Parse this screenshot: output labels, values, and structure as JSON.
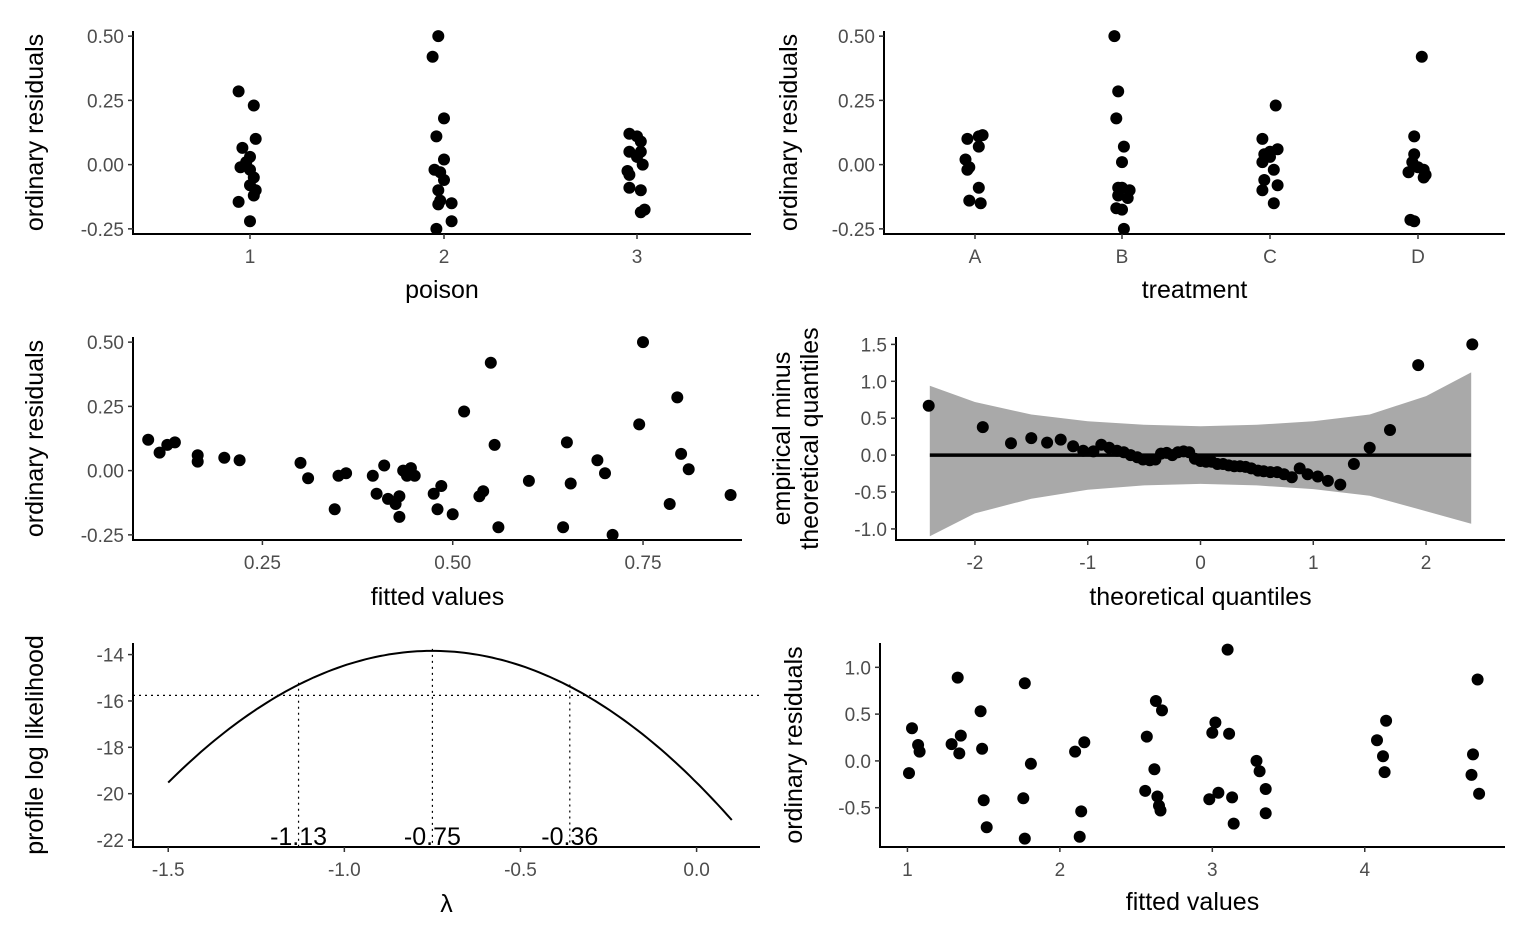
{
  "chart_data": [
    {
      "id": "p1",
      "type": "scatter",
      "xlabel": "poison",
      "ylabel": "ordinary residuals",
      "x_type": "category",
      "categories": [
        "1",
        "2",
        "3"
      ],
      "ylim": [
        -0.27,
        0.52
      ],
      "yticks": [
        -0.25,
        0,
        0.25,
        0.5
      ],
      "ytick_labels": [
        "-0.25",
        "0.00",
        "0.25",
        "0.50"
      ],
      "points": [
        [
          "1",
          -0.06,
          0.285
        ],
        [
          "1",
          0.02,
          0.23
        ],
        [
          "1",
          0.03,
          0.1
        ],
        [
          "1",
          -0.04,
          0.065
        ],
        [
          "1",
          0.0,
          0.03
        ],
        [
          "1",
          -0.02,
          0.01
        ],
        [
          "1",
          -0.05,
          -0.01
        ],
        [
          "1",
          0.0,
          -0.02
        ],
        [
          "1",
          0.02,
          -0.05
        ],
        [
          "1",
          0.0,
          -0.08
        ],
        [
          "1",
          0.03,
          -0.1
        ],
        [
          "1",
          0.02,
          -0.12
        ],
        [
          "1",
          -0.06,
          -0.145
        ],
        [
          "1",
          0.0,
          -0.22
        ],
        [
          "2",
          -0.06,
          0.42
        ],
        [
          "2",
          -0.03,
          0.5
        ],
        [
          "2",
          0.0,
          0.18
        ],
        [
          "2",
          -0.04,
          0.11
        ],
        [
          "2",
          0.0,
          0.02
        ],
        [
          "2",
          -0.05,
          -0.02
        ],
        [
          "2",
          -0.02,
          -0.03
        ],
        [
          "2",
          0.0,
          -0.06
        ],
        [
          "2",
          -0.03,
          -0.1
        ],
        [
          "2",
          -0.02,
          -0.14
        ],
        [
          "2",
          -0.03,
          -0.155
        ],
        [
          "2",
          0.04,
          -0.15
        ],
        [
          "2",
          0.04,
          -0.22
        ],
        [
          "2",
          -0.04,
          -0.25
        ],
        [
          "3",
          -0.04,
          0.12
        ],
        [
          "3",
          0.0,
          0.11
        ],
        [
          "3",
          0.02,
          0.09
        ],
        [
          "3",
          -0.04,
          0.05
        ],
        [
          "3",
          0.02,
          0.05
        ],
        [
          "3",
          0.0,
          0.03
        ],
        [
          "3",
          0.03,
          0.0
        ],
        [
          "3",
          -0.05,
          -0.025
        ],
        [
          "3",
          -0.04,
          -0.04
        ],
        [
          "3",
          -0.04,
          -0.09
        ],
        [
          "3",
          0.02,
          -0.1
        ],
        [
          "3",
          0.04,
          -0.175
        ],
        [
          "3",
          0.02,
          -0.185
        ]
      ]
    },
    {
      "id": "p2",
      "type": "scatter",
      "xlabel": "treatment",
      "ylabel": "ordinary residuals",
      "x_type": "category",
      "categories": [
        "A",
        "B",
        "C",
        "D"
      ],
      "ylim": [
        -0.27,
        0.52
      ],
      "yticks": [
        -0.25,
        0,
        0.25,
        0.5
      ],
      "ytick_labels": [
        "-0.25",
        "0.00",
        "0.25",
        "0.50"
      ],
      "points": [
        [
          "A",
          -0.04,
          0.1
        ],
        [
          "A",
          0.02,
          0.11
        ],
        [
          "A",
          0.04,
          0.115
        ],
        [
          "A",
          0.02,
          0.07
        ],
        [
          "A",
          -0.05,
          0.02
        ],
        [
          "A",
          -0.03,
          -0.01
        ],
        [
          "A",
          -0.04,
          -0.02
        ],
        [
          "A",
          0.02,
          -0.09
        ],
        [
          "A",
          -0.03,
          -0.14
        ],
        [
          "A",
          0.03,
          -0.15
        ],
        [
          "B",
          -0.04,
          0.5
        ],
        [
          "B",
          -0.02,
          0.285
        ],
        [
          "B",
          -0.03,
          0.18
        ],
        [
          "B",
          0.01,
          0.07
        ],
        [
          "B",
          0.0,
          0.01
        ],
        [
          "B",
          -0.02,
          -0.09
        ],
        [
          "B",
          0.0,
          -0.09
        ],
        [
          "B",
          0.04,
          -0.1
        ],
        [
          "B",
          -0.02,
          -0.12
        ],
        [
          "B",
          0.03,
          -0.13
        ],
        [
          "B",
          -0.03,
          -0.17
        ],
        [
          "B",
          0.0,
          -0.175
        ],
        [
          "B",
          0.01,
          -0.25
        ],
        [
          "C",
          -0.04,
          0.1
        ],
        [
          "C",
          0.03,
          0.23
        ],
        [
          "C",
          0.0,
          0.05
        ],
        [
          "C",
          -0.03,
          0.04
        ],
        [
          "C",
          0.04,
          0.06
        ],
        [
          "C",
          0.0,
          0.03
        ],
        [
          "C",
          -0.04,
          0.01
        ],
        [
          "C",
          0.02,
          -0.02
        ],
        [
          "C",
          -0.03,
          -0.06
        ],
        [
          "C",
          0.04,
          -0.08
        ],
        [
          "C",
          -0.04,
          -0.1
        ],
        [
          "C",
          0.02,
          -0.15
        ],
        [
          "D",
          -0.02,
          0.11
        ],
        [
          "D",
          0.02,
          0.42
        ],
        [
          "D",
          -0.02,
          0.04
        ],
        [
          "D",
          -0.03,
          0.01
        ],
        [
          "D",
          0.0,
          -0.01
        ],
        [
          "D",
          0.03,
          -0.02
        ],
        [
          "D",
          -0.05,
          -0.03
        ],
        [
          "D",
          0.04,
          -0.04
        ],
        [
          "D",
          0.03,
          -0.05
        ],
        [
          "D",
          -0.04,
          -0.215
        ],
        [
          "D",
          -0.02,
          -0.22
        ]
      ]
    },
    {
      "id": "p3",
      "type": "scatter",
      "xlabel": "fitted values",
      "ylabel": "ordinary residuals",
      "xlim": [
        0.08,
        0.88
      ],
      "ylim": [
        -0.27,
        0.52
      ],
      "xticks": [
        0.25,
        0.5,
        0.75
      ],
      "xtick_labels": [
        "0.25",
        "0.50",
        "0.75"
      ],
      "yticks": [
        -0.25,
        0,
        0.25,
        0.5
      ],
      "ytick_labels": [
        "-0.25",
        "0.00",
        "0.25",
        "0.50"
      ],
      "points": [
        [
          0.1,
          0.12
        ],
        [
          0.115,
          0.07
        ],
        [
          0.125,
          0.1
        ],
        [
          0.135,
          0.11
        ],
        [
          0.165,
          0.06
        ],
        [
          0.165,
          0.035
        ],
        [
          0.2,
          0.05
        ],
        [
          0.22,
          0.04
        ],
        [
          0.3,
          0.03
        ],
        [
          0.31,
          -0.03
        ],
        [
          0.345,
          -0.15
        ],
        [
          0.35,
          -0.02
        ],
        [
          0.36,
          -0.01
        ],
        [
          0.395,
          -0.02
        ],
        [
          0.4,
          -0.09
        ],
        [
          0.41,
          0.02
        ],
        [
          0.415,
          -0.11
        ],
        [
          0.425,
          -0.13
        ],
        [
          0.43,
          -0.18
        ],
        [
          0.43,
          -0.1
        ],
        [
          0.435,
          0.0
        ],
        [
          0.44,
          -0.02
        ],
        [
          0.445,
          0.01
        ],
        [
          0.45,
          -0.02
        ],
        [
          0.475,
          -0.09
        ],
        [
          0.48,
          -0.15
        ],
        [
          0.485,
          -0.06
        ],
        [
          0.5,
          -0.17
        ],
        [
          0.515,
          0.23
        ],
        [
          0.535,
          -0.1
        ],
        [
          0.54,
          -0.08
        ],
        [
          0.55,
          0.42
        ],
        [
          0.555,
          0.1
        ],
        [
          0.56,
          -0.22
        ],
        [
          0.6,
          -0.04
        ],
        [
          0.645,
          -0.22
        ],
        [
          0.65,
          0.11
        ],
        [
          0.655,
          -0.05
        ],
        [
          0.69,
          0.04
        ],
        [
          0.7,
          -0.01
        ],
        [
          0.71,
          -0.25
        ],
        [
          0.745,
          0.18
        ],
        [
          0.75,
          0.5
        ],
        [
          0.785,
          -0.13
        ],
        [
          0.795,
          0.285
        ],
        [
          0.8,
          0.065
        ],
        [
          0.81,
          0.005
        ],
        [
          0.865,
          -0.095
        ]
      ]
    },
    {
      "id": "p4",
      "type": "scatter",
      "xlabel": "theoretical quantiles",
      "ylabel_lines": [
        "empirical minus",
        "theoretical quantiles"
      ],
      "xlim": [
        -2.7,
        2.7
      ],
      "ylim": [
        -1.15,
        1.6
      ],
      "xticks": [
        -2,
        -1,
        0,
        1,
        2
      ],
      "xtick_labels": [
        "-2",
        "-1",
        "0",
        "1",
        "2"
      ],
      "yticks": [
        -1,
        -0.5,
        0,
        0.5,
        1,
        1.5
      ],
      "ytick_labels": [
        "-1.0",
        "-0.5",
        "0.0",
        "0.5",
        "1.0",
        "1.5"
      ],
      "reference_line": 0,
      "band_x": [
        -2.4,
        -2.0,
        -1.5,
        -1.0,
        -0.5,
        0.0,
        0.5,
        1.0,
        1.5,
        2.0,
        2.4
      ],
      "band_upper": [
        0.94,
        0.72,
        0.55,
        0.46,
        0.41,
        0.39,
        0.41,
        0.46,
        0.55,
        0.8,
        1.12
      ],
      "band_lower": [
        -1.1,
        -0.79,
        -0.59,
        -0.47,
        -0.41,
        -0.39,
        -0.41,
        -0.46,
        -0.55,
        -0.76,
        -0.93
      ],
      "points": [
        [
          -2.41,
          0.67
        ],
        [
          -1.93,
          0.38
        ],
        [
          -1.68,
          0.16
        ],
        [
          -1.5,
          0.23
        ],
        [
          -1.36,
          0.17
        ],
        [
          -1.24,
          0.21
        ],
        [
          -1.13,
          0.12
        ],
        [
          -1.04,
          0.06
        ],
        [
          -0.95,
          0.05
        ],
        [
          -0.88,
          0.14
        ],
        [
          -0.81,
          0.1
        ],
        [
          -0.74,
          0.06
        ],
        [
          -0.68,
          0.04
        ],
        [
          -0.62,
          0.0
        ],
        [
          -0.56,
          -0.03
        ],
        [
          -0.51,
          -0.06
        ],
        [
          -0.45,
          -0.07
        ],
        [
          -0.4,
          -0.06
        ],
        [
          -0.35,
          0.02
        ],
        [
          -0.3,
          0.03
        ],
        [
          -0.25,
          0.0
        ],
        [
          -0.2,
          0.04
        ],
        [
          -0.15,
          0.05
        ],
        [
          -0.1,
          0.04
        ],
        [
          -0.05,
          -0.05
        ],
        [
          0.0,
          -0.08
        ],
        [
          0.05,
          -0.09
        ],
        [
          0.1,
          -0.09
        ],
        [
          0.15,
          -0.12
        ],
        [
          0.2,
          -0.12
        ],
        [
          0.25,
          -0.14
        ],
        [
          0.3,
          -0.15
        ],
        [
          0.35,
          -0.15
        ],
        [
          0.4,
          -0.16
        ],
        [
          0.45,
          -0.18
        ],
        [
          0.51,
          -0.21
        ],
        [
          0.56,
          -0.22
        ],
        [
          0.62,
          -0.23
        ],
        [
          0.68,
          -0.23
        ],
        [
          0.74,
          -0.26
        ],
        [
          0.81,
          -0.3
        ],
        [
          0.88,
          -0.18
        ],
        [
          0.95,
          -0.26
        ],
        [
          1.04,
          -0.29
        ],
        [
          1.13,
          -0.35
        ],
        [
          1.24,
          -0.4
        ],
        [
          1.36,
          -0.12
        ],
        [
          1.5,
          0.1
        ],
        [
          1.68,
          0.34
        ],
        [
          1.93,
          1.22
        ],
        [
          2.41,
          1.5
        ]
      ]
    },
    {
      "id": "p5",
      "type": "line",
      "xlabel": "λ",
      "ylabel": "profile log likelihood",
      "xlim": [
        -1.6,
        0.18
      ],
      "ylim": [
        -22.3,
        -13.5
      ],
      "xticks": [
        -1.5,
        -1.0,
        -0.5,
        0.0
      ],
      "xtick_labels": [
        "-1.5",
        "-1.0",
        "-0.5",
        "0.0"
      ],
      "yticks": [
        -22,
        -20,
        -18,
        -16,
        -14
      ],
      "ytick_labels": [
        "-22",
        "-20",
        "-18",
        "-16",
        "-14"
      ],
      "curve_vertex_x": -0.75,
      "curve_vertex_y": -13.84,
      "curve_curvature": 10.1,
      "curve_x_range": [
        -1.5,
        0.1
      ],
      "threshold_y": -15.76,
      "vlines": [
        -1.13,
        -0.75,
        -0.36
      ],
      "vline_labels": [
        "-1.13",
        "-0.75",
        "-0.36"
      ]
    },
    {
      "id": "p6",
      "type": "scatter",
      "xlabel": "fitted values",
      "ylabel": "ordinary residuals",
      "xlim": [
        0.82,
        4.92
      ],
      "ylim": [
        -0.92,
        1.26
      ],
      "xticks": [
        1,
        2,
        3,
        4
      ],
      "xtick_labels": [
        "1",
        "2",
        "3",
        "4"
      ],
      "yticks": [
        -0.5,
        0,
        0.5,
        1
      ],
      "ytick_labels": [
        "-0.5",
        "0.0",
        "0.5",
        "1.0"
      ],
      "points": [
        [
          1.01,
          -0.13
        ],
        [
          1.03,
          0.35
        ],
        [
          1.07,
          0.17
        ],
        [
          1.08,
          0.1
        ],
        [
          1.29,
          0.18
        ],
        [
          1.33,
          0.89
        ],
        [
          1.34,
          0.08
        ],
        [
          1.35,
          0.27
        ],
        [
          1.48,
          0.53
        ],
        [
          1.49,
          0.13
        ],
        [
          1.5,
          -0.42
        ],
        [
          1.52,
          -0.71
        ],
        [
          1.76,
          -0.4
        ],
        [
          1.77,
          0.83
        ],
        [
          1.77,
          -0.83
        ],
        [
          1.81,
          -0.03
        ],
        [
          2.1,
          0.1
        ],
        [
          2.13,
          -0.81
        ],
        [
          2.14,
          -0.54
        ],
        [
          2.16,
          0.2
        ],
        [
          2.56,
          -0.32
        ],
        [
          2.57,
          0.26
        ],
        [
          2.62,
          -0.09
        ],
        [
          2.63,
          0.64
        ],
        [
          2.64,
          -0.38
        ],
        [
          2.65,
          -0.48
        ],
        [
          2.66,
          -0.53
        ],
        [
          2.67,
          0.54
        ],
        [
          2.98,
          -0.41
        ],
        [
          3.0,
          0.3
        ],
        [
          3.02,
          0.41
        ],
        [
          3.04,
          -0.34
        ],
        [
          3.1,
          1.19
        ],
        [
          3.11,
          0.29
        ],
        [
          3.13,
          -0.39
        ],
        [
          3.14,
          -0.67
        ],
        [
          3.29,
          0.0
        ],
        [
          3.31,
          -0.11
        ],
        [
          3.35,
          -0.3
        ],
        [
          3.35,
          -0.56
        ],
        [
          4.08,
          0.22
        ],
        [
          4.12,
          0.05
        ],
        [
          4.13,
          -0.12
        ],
        [
          4.14,
          0.43
        ],
        [
          4.7,
          -0.15
        ],
        [
          4.71,
          0.07
        ],
        [
          4.74,
          0.87
        ],
        [
          4.75,
          -0.35
        ]
      ]
    }
  ]
}
